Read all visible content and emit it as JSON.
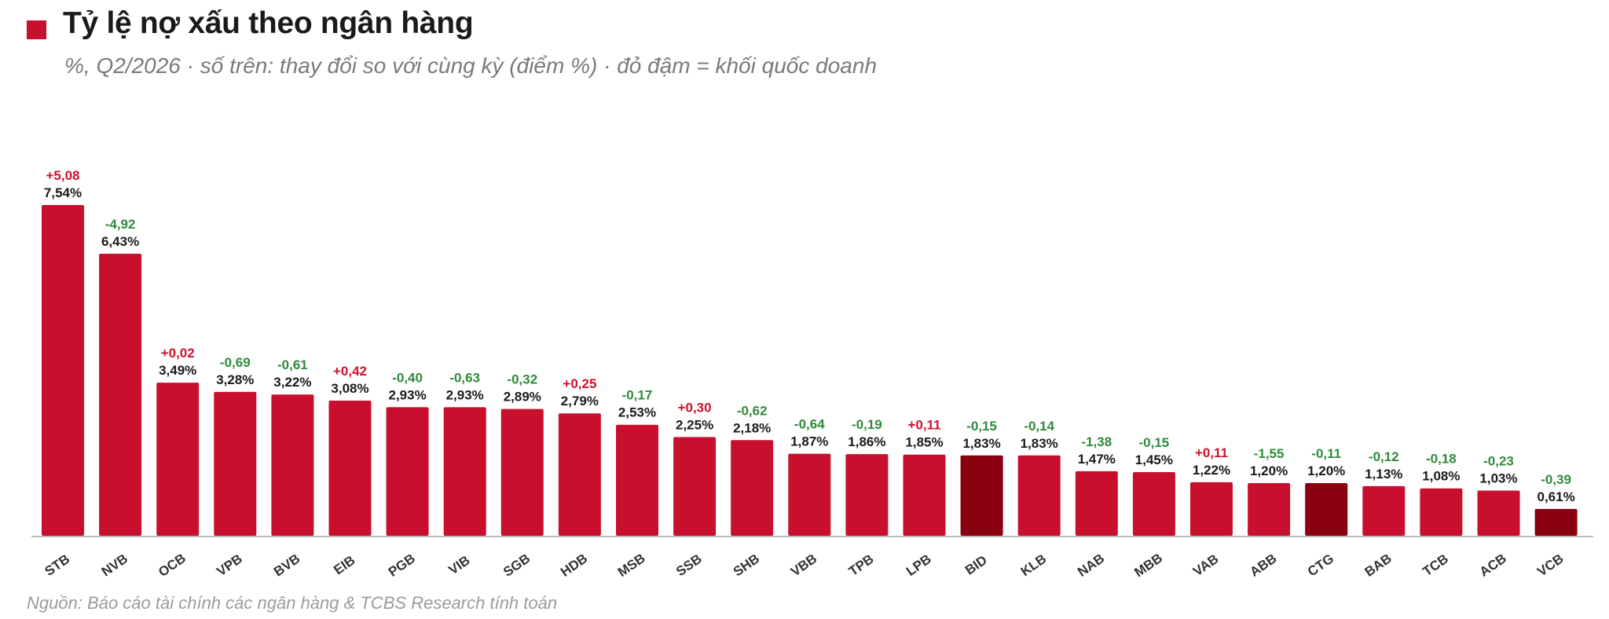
{
  "title": "Tỷ lệ nợ xấu theo ngân hàng",
  "subtitle": "%, Q2/2026 · số trên: thay đổi so với cùng kỳ (điểm %) · đỏ đậm = khối quốc doanh",
  "source": "Nguồn: Báo cáo tài chính các ngân hàng & TCBS Research tính toán",
  "colors": {
    "title_marker": "#c8102e",
    "bar": "#c8102e",
    "bar_state_owned": "#8b0010",
    "change_positive": "#d0102e",
    "change_negative": "#2e8b3a",
    "value_label": "#1a1a1a",
    "axis": "#bbbbbb"
  },
  "chart_data": {
    "type": "bar",
    "title": "Tỷ lệ nợ xấu theo ngân hàng",
    "subtitle": "%, Q2/2026 · số trên: thay đổi so với cùng kỳ (điểm %) · đỏ đậm = khối quốc doanh",
    "categories": [
      "STB",
      "NVB",
      "OCB",
      "VPB",
      "BVB",
      "EIB",
      "PGB",
      "VIB",
      "SGB",
      "HDB",
      "MSB",
      "SSB",
      "SHB",
      "VBB",
      "TPB",
      "LPB",
      "BID",
      "KLB",
      "NAB",
      "MBB",
      "VAB",
      "ABB",
      "CTG",
      "BAB",
      "TCB",
      "ACB",
      "VCB"
    ],
    "values": [
      7.54,
      6.43,
      3.49,
      3.28,
      3.22,
      3.08,
      2.93,
      2.93,
      2.89,
      2.79,
      2.53,
      2.25,
      2.18,
      1.87,
      1.86,
      1.85,
      1.83,
      1.83,
      1.47,
      1.45,
      1.22,
      1.2,
      1.2,
      1.13,
      1.08,
      1.03,
      0.61
    ],
    "value_labels": [
      "7,54%",
      "6,43%",
      "3,49%",
      "3,28%",
      "3,22%",
      "3,08%",
      "2,93%",
      "2,93%",
      "2,89%",
      "2,79%",
      "2,53%",
      "2,25%",
      "2,18%",
      "1,87%",
      "1,86%",
      "1,85%",
      "1,83%",
      "1,83%",
      "1,47%",
      "1,45%",
      "1,22%",
      "1,20%",
      "1,20%",
      "1,13%",
      "1,08%",
      "1,03%",
      "0,61%"
    ],
    "yoy_change": [
      5.08,
      -4.92,
      0.02,
      -0.69,
      -0.61,
      0.42,
      -0.4,
      -0.63,
      -0.32,
      0.25,
      -0.17,
      0.3,
      -0.62,
      -0.64,
      -0.19,
      0.11,
      -0.15,
      -0.14,
      -1.38,
      -0.15,
      0.11,
      -1.55,
      -0.11,
      -0.12,
      -0.18,
      -0.23,
      -0.39
    ],
    "yoy_change_labels": [
      "+5,08",
      "-4,92",
      "+0,02",
      "-0,69",
      "-0,61",
      "+0,42",
      "-0,40",
      "-0,63",
      "-0,32",
      "+0,25",
      "-0,17",
      "+0,30",
      "-0,62",
      "-0,64",
      "-0,19",
      "+0,11",
      "-0,15",
      "-0,14",
      "-1,38",
      "-0,15",
      "+0,11",
      "-1,55",
      "-0,11",
      "-0,12",
      "-0,18",
      "-0,23",
      "-0,39"
    ],
    "state_owned": [
      "BID",
      "CTG",
      "VCB"
    ],
    "ylim": [
      0,
      7.54
    ],
    "grid": false,
    "legend": "none"
  }
}
